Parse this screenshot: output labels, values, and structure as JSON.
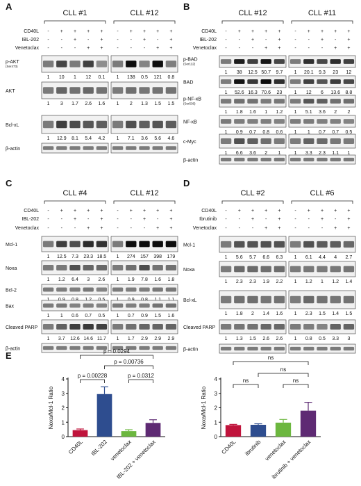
{
  "panels": {
    "A": {
      "letter": "A",
      "groups": [
        "CLL #1",
        "CLL #12"
      ],
      "conditions": [
        {
          "label": "CD40L",
          "signs": [
            "-",
            "+",
            "+",
            "+",
            "+"
          ]
        },
        {
          "label": "IBL-202",
          "signs": [
            "-",
            "-",
            "+",
            "-",
            "+"
          ]
        },
        {
          "label": "Venetoclax",
          "signs": [
            "-",
            "-",
            "-",
            "+",
            "+"
          ]
        }
      ],
      "rows": [
        {
          "label": "p-AKT",
          "sub": "(Ser473)",
          "vals": [
            [
              "1",
              "10",
              "1",
              "12",
              "0.1"
            ],
            [
              "1",
              "138",
              "0.5",
              "121",
              "0.8"
            ]
          ]
        },
        {
          "label": "AKT",
          "sub": "",
          "vals": [
            [
              "1",
              "3",
              "1.7",
              "2.6",
              "1.6"
            ],
            [
              "1",
              "2",
              "1.3",
              "1.5",
              "1.5"
            ]
          ]
        },
        {
          "label": "Bcl-xL",
          "sub": "",
          "vals": [
            [
              "1",
              "12.9",
              "8.1",
              "5.4",
              "4.2"
            ],
            [
              "1",
              "7.1",
              "3.6",
              "5.6",
              "4.6"
            ]
          ]
        },
        {
          "label": "β-actin",
          "sub": "",
          "vals": []
        }
      ]
    },
    "B": {
      "letter": "B",
      "groups": [
        "CLL #12",
        "CLL #11"
      ],
      "conditions": [
        {
          "label": "CD40L",
          "signs": [
            "-",
            "+",
            "+",
            "+",
            "+"
          ]
        },
        {
          "label": "IBL-202",
          "signs": [
            "-",
            "-",
            "+",
            "-",
            "+"
          ]
        },
        {
          "label": "Venetoclax",
          "signs": [
            "-",
            "-",
            "-",
            "+",
            "+"
          ]
        }
      ],
      "rows": [
        {
          "label": "p-BAD",
          "sub": "(Ser112)",
          "vals": [
            [
              "1",
              "38",
              "12.5",
              "50.7",
              "9.7"
            ],
            [
              "1",
              "20.1",
              "9.3",
              "23",
              "12"
            ]
          ]
        },
        {
          "label": "BAD",
          "sub": "",
          "vals": [
            [
              "1",
              "52.6",
              "16.3",
              "70.6",
              "23"
            ],
            [
              "1",
              "12",
              "6",
              "13.6",
              "8.8"
            ]
          ]
        },
        {
          "label": "p-NF-κB",
          "sub": "(Ser536)",
          "vals": [
            [
              "1",
              "1.8",
              "1.6",
              "1",
              "1.2"
            ],
            [
              "1",
              "5.1",
              "3.6",
              "2",
              "2"
            ]
          ]
        },
        {
          "label": "NF-κB",
          "sub": "",
          "vals": [
            [
              "1",
              "0.9",
              "0.7",
              "0.8",
              "0.6"
            ],
            [
              "1",
              "1",
              "0.7",
              "0.7",
              "0.5"
            ]
          ]
        },
        {
          "label": "c-Myc",
          "sub": "",
          "vals": [
            [
              "1",
              "6.6",
              "3.6",
              "2",
              "1"
            ],
            [
              "1",
              "3.3",
              "2.3",
              "1.1",
              "1"
            ]
          ]
        },
        {
          "label": "β-actin",
          "sub": "",
          "vals": []
        }
      ]
    },
    "C": {
      "letter": "C",
      "groups": [
        "CLL #4",
        "CLL #12"
      ],
      "conditions": [
        {
          "label": "CD40L",
          "signs": [
            "-",
            "+",
            "+",
            "+",
            "+"
          ]
        },
        {
          "label": "IBL-202",
          "signs": [
            "-",
            "-",
            "+",
            "-",
            "+"
          ]
        },
        {
          "label": "Venetoclax",
          "signs": [
            "-",
            "-",
            "-",
            "+",
            "+"
          ]
        }
      ],
      "rows": [
        {
          "label": "Mcl-1",
          "sub": "",
          "vals": [
            [
              "1",
              "12.5",
              "7.3",
              "23.3",
              "18.5"
            ],
            [
              "1",
              "274",
              "157",
              "398",
              "179"
            ]
          ]
        },
        {
          "label": "Noxa",
          "sub": "",
          "vals": [
            [
              "1",
              "1.2",
              "6.4",
              "3",
              "2.6"
            ],
            [
              "1",
              "1.9",
              "7.8",
              "1.6",
              "1.8"
            ]
          ]
        },
        {
          "label": "Bcl-2",
          "sub": "",
          "vals": [
            [
              "1",
              "0.9",
              "0.8",
              "1.2",
              "0.5"
            ],
            [
              "1",
              "0.9",
              "0.8",
              "1.1",
              "1.1"
            ]
          ]
        },
        {
          "label": "Bax",
          "sub": "",
          "vals": [
            [
              "1",
              "1",
              "0.6",
              "0.7",
              "0.5"
            ],
            [
              "1",
              "0.7",
              "0.9",
              "1.5",
              "1.6"
            ]
          ]
        },
        {
          "label": "Cleaved PARP",
          "sub": "",
          "vals": [
            [
              "1",
              "3.7",
              "12.6",
              "14.6",
              "11.7"
            ],
            [
              "1",
              "1.7",
              "2.9",
              "2.9",
              "2.9"
            ]
          ]
        },
        {
          "label": "β-actin",
          "sub": "",
          "vals": []
        }
      ]
    },
    "D": {
      "letter": "D",
      "groups": [
        "CLL #2",
        "CLL #6"
      ],
      "conditions": [
        {
          "label": "CD40L",
          "signs": [
            "-",
            "+",
            "+",
            "+",
            "+"
          ]
        },
        {
          "label": "Ibrutinib",
          "signs": [
            "-",
            "-",
            "+",
            "-",
            "+"
          ]
        },
        {
          "label": "Venetoclax",
          "signs": [
            "-",
            "-",
            "-",
            "+",
            "+"
          ]
        }
      ],
      "rows": [
        {
          "label": "Mcl-1",
          "sub": "",
          "vals": [
            [
              "1",
              "5.6",
              "5.7",
              "6.6",
              "6.3"
            ],
            [
              "1",
              "6.1",
              "4.4",
              "4",
              "2.7"
            ]
          ]
        },
        {
          "label": "Noxa",
          "sub": "",
          "vals": [
            [
              "1",
              "2.3",
              "2.3",
              "1.9",
              "2.2"
            ],
            [
              "1",
              "1.2",
              "1",
              "1.2",
              "1.4"
            ]
          ]
        },
        {
          "label": "Bcl-xL",
          "sub": "",
          "vals": [
            [
              "1",
              "1.8",
              "2",
              "1.4",
              "1.6"
            ],
            [
              "1",
              "2.3",
              "1.5",
              "1.4",
              "1.5"
            ]
          ]
        },
        {
          "label": "Cleaved PARP",
          "sub": "",
          "vals": [
            [
              "1",
              "1.3",
              "1.5",
              "2.6",
              "2.6"
            ],
            [
              "1",
              "0.8",
              "0.5",
              "3.3",
              "3"
            ]
          ]
        },
        {
          "label": "β-actin",
          "sub": "",
          "vals": []
        }
      ]
    },
    "E": {
      "letter": "E"
    }
  },
  "chart_data": [
    {
      "type": "bar",
      "categories": [
        "CD40L",
        "IBL-202",
        "venetoclax",
        "IBL-202 + venetoclax"
      ],
      "values": [
        0.45,
        2.95,
        0.38,
        0.95
      ],
      "errors": [
        0.08,
        0.5,
        0.1,
        0.22
      ],
      "colors": [
        "#c0143c",
        "#2e4d8f",
        "#6cb73f",
        "#5e2a73"
      ],
      "ylabel": "Noxa/Mcl-1 Ratio",
      "ylim": [
        0,
        4
      ],
      "yticks": [
        0,
        1,
        2,
        3,
        4
      ],
      "comparisons": [
        {
          "from": 0,
          "to": 1,
          "label": "p = 0.00228"
        },
        {
          "from": 2,
          "to": 3,
          "label": "p = 0.0312"
        },
        {
          "from": 1,
          "to": 3,
          "label": "p = 0.00736"
        },
        {
          "from": 0,
          "to": 3,
          "label": "p = 0.0294"
        }
      ]
    },
    {
      "type": "bar",
      "categories": [
        "CD40L",
        "ibrutinib",
        "venetoclax",
        "ibrutinib + venetoclax"
      ],
      "values": [
        0.8,
        0.82,
        0.97,
        1.8
      ],
      "errors": [
        0.05,
        0.07,
        0.22,
        0.58
      ],
      "colors": [
        "#c0143c",
        "#2e4d8f",
        "#6cb73f",
        "#5e2a73"
      ],
      "ylabel": "Noxa/Mcl-1 Ratio",
      "ylim": [
        0,
        4
      ],
      "yticks": [
        0,
        1,
        2,
        3,
        4
      ],
      "comparisons": [
        {
          "from": 0,
          "to": 1,
          "label": "ns"
        },
        {
          "from": 2,
          "to": 3,
          "label": "ns"
        },
        {
          "from": 1,
          "to": 3,
          "label": "ns"
        },
        {
          "from": 0,
          "to": 3,
          "label": "ns"
        }
      ]
    }
  ]
}
